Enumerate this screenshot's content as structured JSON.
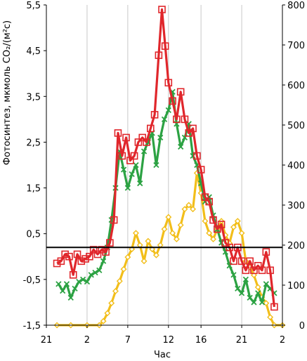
{
  "chart_data": {
    "type": "line",
    "xlabel": "Час",
    "ylabel": "Фотосинтез, мкмоль CO₂/(м²с)",
    "x_ticks": [
      "21",
      "2",
      "7",
      "12",
      "16",
      "21",
      "2"
    ],
    "y_left_ticks": [
      "-1,5",
      "-0,5",
      "0,5",
      "1,5",
      "2,5",
      "3,5",
      "4,5",
      "5,5"
    ],
    "y_right_ticks": [
      "0",
      "100",
      "200",
      "300",
      "400",
      "500",
      "600",
      "700",
      "800"
    ],
    "ylim_left": [
      -1.5,
      5.5
    ],
    "ylim_right": [
      0,
      800
    ],
    "x_range_hours": [
      21,
      50
    ],
    "zero_line": 0.2,
    "grid": "vertical",
    "series": [
      {
        "axis": "right",
        "color": "#f2be1a",
        "marker": "diamond",
        "points": [
          [
            22.3,
            0
          ],
          [
            24,
            0
          ],
          [
            26,
            0
          ],
          [
            27.5,
            0
          ],
          [
            28,
            10
          ],
          [
            28.5,
            30
          ],
          [
            29,
            55
          ],
          [
            29.5,
            85
          ],
          [
            30,
            110
          ],
          [
            30.5,
            140
          ],
          [
            31,
            170
          ],
          [
            31.5,
            190
          ],
          [
            32,
            230
          ],
          [
            32.5,
            200
          ],
          [
            33,
            160
          ],
          [
            33.5,
            210
          ],
          [
            34,
            190
          ],
          [
            34.5,
            175
          ],
          [
            35,
            200
          ],
          [
            35.5,
            240
          ],
          [
            36,
            270
          ],
          [
            36.5,
            230
          ],
          [
            37,
            215
          ],
          [
            37.5,
            250
          ],
          [
            38,
            290
          ],
          [
            38.5,
            300
          ],
          [
            39,
            290
          ],
          [
            39.5,
            380
          ],
          [
            40,
            330
          ],
          [
            40.5,
            260
          ],
          [
            41,
            230
          ],
          [
            41.5,
            215
          ],
          [
            42,
            240
          ],
          [
            42.5,
            260
          ],
          [
            43,
            225
          ],
          [
            43.5,
            205
          ],
          [
            44,
            245
          ],
          [
            44.5,
            260
          ],
          [
            45,
            230
          ],
          [
            45.5,
            160
          ],
          [
            46,
            145
          ],
          [
            46.5,
            125
          ],
          [
            47,
            95
          ],
          [
            47.5,
            70
          ],
          [
            48,
            55
          ],
          [
            48.5,
            20
          ],
          [
            49,
            0
          ],
          [
            50,
            0
          ]
        ]
      },
      {
        "axis": "left",
        "color": "#2ca243",
        "marker": "x",
        "points": [
          [
            22.5,
            -0.6
          ],
          [
            23,
            -0.75
          ],
          [
            23.5,
            -0.6
          ],
          [
            24,
            -0.9
          ],
          [
            24.5,
            -0.7
          ],
          [
            25,
            -0.55
          ],
          [
            25.5,
            -0.5
          ],
          [
            26,
            -0.55
          ],
          [
            26.5,
            -0.4
          ],
          [
            27,
            -0.35
          ],
          [
            27.5,
            -0.3
          ],
          [
            28,
            -0.1
          ],
          [
            28.5,
            0.2
          ],
          [
            29,
            0.8
          ],
          [
            29.5,
            1.5
          ],
          [
            30,
            2.3
          ],
          [
            30.5,
            1.9
          ],
          [
            31,
            1.5
          ],
          [
            31.5,
            1.8
          ],
          [
            32,
            2.0
          ],
          [
            32.5,
            1.6
          ],
          [
            33,
            2.3
          ],
          [
            33.5,
            2.5
          ],
          [
            34,
            2.7
          ],
          [
            34.5,
            2.0
          ],
          [
            35,
            2.6
          ],
          [
            35.5,
            3.0
          ],
          [
            36,
            3.2
          ],
          [
            36.5,
            3.6
          ],
          [
            37,
            2.9
          ],
          [
            37.5,
            2.4
          ],
          [
            38,
            2.6
          ],
          [
            38.5,
            2.9
          ],
          [
            39,
            2.2
          ],
          [
            39.5,
            2.0
          ],
          [
            40,
            1.6
          ],
          [
            40.5,
            1.2
          ],
          [
            41,
            1.3
          ],
          [
            41.5,
            0.9
          ],
          [
            42,
            0.6
          ],
          [
            42.5,
            0.3
          ],
          [
            43,
            0.1
          ],
          [
            43.5,
            -0.2
          ],
          [
            44,
            -0.4
          ],
          [
            44.5,
            -0.7
          ],
          [
            45,
            -0.8
          ],
          [
            45.5,
            -0.5
          ],
          [
            46,
            -0.9
          ],
          [
            46.5,
            -1.0
          ],
          [
            47,
            -0.8
          ],
          [
            47.5,
            -1.0
          ],
          [
            48,
            -0.6
          ],
          [
            48.5,
            -0.7
          ],
          [
            49,
            -0.8
          ]
        ]
      },
      {
        "axis": "left",
        "color": "#e0262b",
        "marker": "square",
        "points": [
          [
            22.3,
            -0.15
          ],
          [
            22.8,
            -0.1
          ],
          [
            23.3,
            0.05
          ],
          [
            23.8,
            0.0
          ],
          [
            24.3,
            -0.4
          ],
          [
            24.8,
            0.05
          ],
          [
            25.3,
            -0.1
          ],
          [
            25.8,
            -0.05
          ],
          [
            26.3,
            0.0
          ],
          [
            26.8,
            0.15
          ],
          [
            27.3,
            0.05
          ],
          [
            27.8,
            0.15
          ],
          [
            28.3,
            0.1
          ],
          [
            28.8,
            0.3
          ],
          [
            29.3,
            0.8
          ],
          [
            29.8,
            2.7
          ],
          [
            30.3,
            2.2
          ],
          [
            30.8,
            2.6
          ],
          [
            31.3,
            2.1
          ],
          [
            31.8,
            2.2
          ],
          [
            32.3,
            2.5
          ],
          [
            32.8,
            2.6
          ],
          [
            33.3,
            2.5
          ],
          [
            33.8,
            2.8
          ],
          [
            34.3,
            3.1
          ],
          [
            34.8,
            4.4
          ],
          [
            35.2,
            5.4
          ],
          [
            35.6,
            4.6
          ],
          [
            36,
            3.8
          ],
          [
            36.5,
            3.4
          ],
          [
            37,
            3.0
          ],
          [
            37.5,
            3.6
          ],
          [
            38,
            3.0
          ],
          [
            38.5,
            2.7
          ],
          [
            39,
            2.8
          ],
          [
            39.5,
            2.2
          ],
          [
            40,
            1.9
          ],
          [
            40.5,
            1.3
          ],
          [
            41,
            1.2
          ],
          [
            41.5,
            0.8
          ],
          [
            42,
            0.6
          ],
          [
            42.5,
            0.7
          ],
          [
            43,
            0.3
          ],
          [
            43.5,
            0.2
          ],
          [
            44,
            -0.1
          ],
          [
            44.5,
            0.2
          ],
          [
            45,
            -0.1
          ],
          [
            45.5,
            -0.3
          ],
          [
            46,
            -0.1
          ],
          [
            46.5,
            -0.3
          ],
          [
            47,
            -0.2
          ],
          [
            47.5,
            -0.3
          ],
          [
            48,
            0.1
          ],
          [
            48.5,
            -0.3
          ],
          [
            49,
            -1.1
          ]
        ]
      }
    ]
  }
}
